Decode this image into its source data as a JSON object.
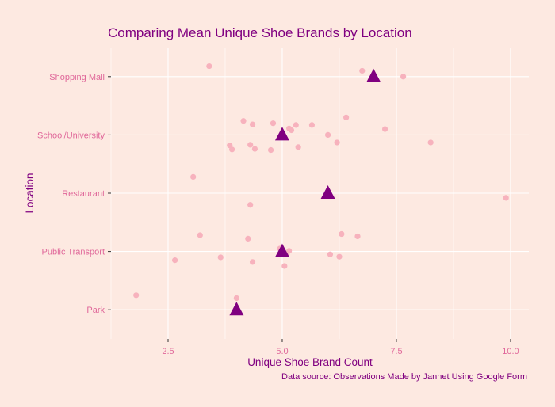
{
  "chart_data": {
    "type": "scatter",
    "title": "Comparing Mean Unique Shoe Brands by Location",
    "xlabel": "Unique Shoe Brand Count",
    "ylabel": "Location",
    "caption": "Data source: Observations Made by Jannet Using Google Form",
    "categories": [
      "Park",
      "Public Transport",
      "Restaurant",
      "School/University",
      "Shopping Mall"
    ],
    "xlim": [
      1.25,
      10.4
    ],
    "x_ticks": [
      2.5,
      5.0,
      7.5,
      10.0
    ],
    "x_tick_labels": [
      "2.5",
      "5.0",
      "7.5",
      "10.0"
    ],
    "grid": true,
    "colors": {
      "background": "#fde9e1",
      "panel": "#fde9e1",
      "points": "#f7b2bd",
      "mean_marker": "#800080",
      "title": "#800080",
      "tick_labels": "#e0689a"
    },
    "series": [
      {
        "marker": "circle",
        "points": [
          {
            "x": 1.8,
            "y": "Park",
            "jitter": 0.25
          },
          {
            "x": 4.0,
            "y": "Park",
            "jitter": 0.2
          },
          {
            "x": 2.65,
            "y": "Public Transport",
            "jitter": -0.15
          },
          {
            "x": 3.2,
            "y": "Public Transport",
            "jitter": 0.28
          },
          {
            "x": 3.65,
            "y": "Public Transport",
            "jitter": -0.1
          },
          {
            "x": 4.25,
            "y": "Public Transport",
            "jitter": 0.22
          },
          {
            "x": 4.35,
            "y": "Public Transport",
            "jitter": -0.18
          },
          {
            "x": 4.95,
            "y": "Public Transport",
            "jitter": 0.05
          },
          {
            "x": 5.05,
            "y": "Public Transport",
            "jitter": -0.25
          },
          {
            "x": 5.1,
            "y": "Public Transport",
            "jitter": -0.05
          },
          {
            "x": 5.15,
            "y": "Public Transport",
            "jitter": 0.01
          },
          {
            "x": 6.05,
            "y": "Public Transport",
            "jitter": -0.05
          },
          {
            "x": 6.25,
            "y": "Public Transport",
            "jitter": -0.09
          },
          {
            "x": 6.3,
            "y": "Public Transport",
            "jitter": 0.3
          },
          {
            "x": 6.65,
            "y": "Public Transport",
            "jitter": 0.26
          },
          {
            "x": 3.05,
            "y": "Restaurant",
            "jitter": 0.28
          },
          {
            "x": 4.3,
            "y": "Restaurant",
            "jitter": -0.2
          },
          {
            "x": 9.9,
            "y": "Restaurant",
            "jitter": -0.08
          },
          {
            "x": 3.85,
            "y": "School/University",
            "jitter": -0.18
          },
          {
            "x": 3.9,
            "y": "School/University",
            "jitter": -0.25
          },
          {
            "x": 4.15,
            "y": "School/University",
            "jitter": 0.24
          },
          {
            "x": 4.3,
            "y": "School/University",
            "jitter": -0.17
          },
          {
            "x": 4.35,
            "y": "School/University",
            "jitter": 0.18
          },
          {
            "x": 4.4,
            "y": "School/University",
            "jitter": -0.24
          },
          {
            "x": 4.75,
            "y": "School/University",
            "jitter": -0.26
          },
          {
            "x": 4.8,
            "y": "School/University",
            "jitter": 0.2
          },
          {
            "x": 5.15,
            "y": "School/University",
            "jitter": 0.11
          },
          {
            "x": 5.2,
            "y": "School/University",
            "jitter": 0.08
          },
          {
            "x": 5.3,
            "y": "School/University",
            "jitter": 0.17
          },
          {
            "x": 5.35,
            "y": "School/University",
            "jitter": -0.21
          },
          {
            "x": 5.65,
            "y": "School/University",
            "jitter": 0.17
          },
          {
            "x": 6.0,
            "y": "School/University",
            "jitter": 0.0
          },
          {
            "x": 6.2,
            "y": "School/University",
            "jitter": -0.13
          },
          {
            "x": 6.4,
            "y": "School/University",
            "jitter": 0.3
          },
          {
            "x": 7.25,
            "y": "School/University",
            "jitter": 0.1
          },
          {
            "x": 8.25,
            "y": "School/University",
            "jitter": -0.13
          },
          {
            "x": 3.4,
            "y": "Shopping Mall",
            "jitter": 0.18
          },
          {
            "x": 6.75,
            "y": "Shopping Mall",
            "jitter": 0.1
          },
          {
            "x": 7.65,
            "y": "Shopping Mall",
            "jitter": 0.0
          }
        ]
      },
      {
        "marker": "triangle",
        "points": [
          {
            "x": 4.0,
            "y": "Park"
          },
          {
            "x": 5.0,
            "y": "Public Transport"
          },
          {
            "x": 6.0,
            "y": "Restaurant"
          },
          {
            "x": 5.0,
            "y": "School/University"
          },
          {
            "x": 7.0,
            "y": "Shopping Mall"
          }
        ]
      }
    ]
  }
}
